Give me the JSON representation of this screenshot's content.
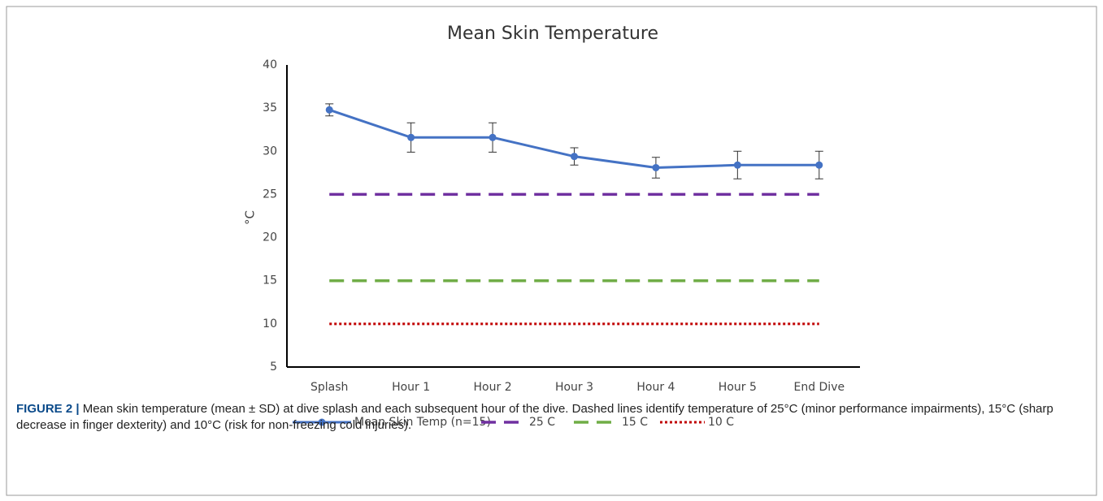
{
  "chart_data": {
    "type": "line",
    "title": "Mean Skin Temperature",
    "y_label": "°C",
    "categories": [
      "Splash",
      "Hour 1",
      "Hour 2",
      "Hour 3",
      "Hour 4",
      "Hour 5",
      "End Dive"
    ],
    "series": [
      {
        "name": "Mean Skin Temp (n=15)",
        "color": "#4472c4",
        "linestyle": "solid",
        "marker": "circle",
        "values": [
          34.8,
          31.6,
          31.6,
          29.4,
          28.1,
          28.4,
          28.4
        ],
        "errors": [
          0.7,
          1.7,
          1.7,
          1.0,
          1.2,
          1.6,
          1.6
        ]
      },
      {
        "name": "25 C",
        "color": "#7030a0",
        "linestyle": "dashed",
        "values": [
          25,
          25,
          25,
          25,
          25,
          25,
          25
        ]
      },
      {
        "name": "15 C",
        "color": "#70ad47",
        "linestyle": "dashed",
        "values": [
          15,
          15,
          15,
          15,
          15,
          15,
          15
        ]
      },
      {
        "name": "10 C",
        "color": "#c00000",
        "linestyle": "dotted",
        "values": [
          10,
          10,
          10,
          10,
          10,
          10,
          10
        ]
      }
    ],
    "ylim": [
      5,
      40
    ],
    "yticks": [
      5,
      10,
      15,
      20,
      25,
      30,
      35,
      40
    ],
    "grid": false,
    "legend": "bottom"
  },
  "caption": {
    "label": "FIGURE 2 |",
    "text": "Mean skin temperature (mean ± SD) at dive splash and each subsequent hour of the dive. Dashed lines identify temperature of 25°C (minor performance impairments), 15°C (sharp decrease in finger dexterity) and 10°C (risk for non-freezing cold injuries)."
  }
}
